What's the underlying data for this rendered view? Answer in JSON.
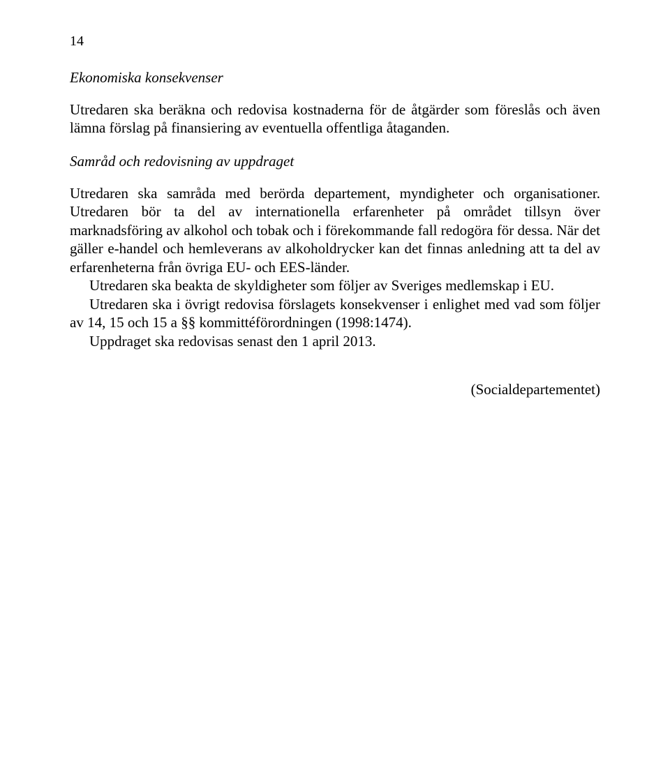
{
  "page_number": "14",
  "heading1": "Ekonomiska konsekvenser",
  "para1": "Utredaren ska beräkna och redovisa kostnaderna för de åtgärder som föreslås och även lämna förslag på finansiering av eventuella offentliga åtaganden.",
  "heading2": "Samråd och redovisning av uppdraget",
  "para2a": "Utredaren ska samråda med berörda departement, myndigheter och organisationer. Utredaren bör ta del av internationella erfarenheter på området tillsyn över marknadsföring av alkohol och tobak och i förekommande fall redogöra för dessa. När det gäller e-handel och hemleverans av alkoholdrycker kan det finnas anledning att ta del av erfarenheterna från övriga EU- och EES-länder.",
  "para2b": "Utredaren ska beakta de skyldigheter som följer av Sveriges medlemskap i EU.",
  "para2c": "Utredaren ska i övrigt redovisa förslagets konsekvenser i enlighet med vad som följer av 14, 15 och 15 a §§ kommittéförordningen (1998:1474).",
  "para2d": "Uppdraget ska redovisas senast den 1 april 2013.",
  "signature": "(Socialdepartementet)"
}
